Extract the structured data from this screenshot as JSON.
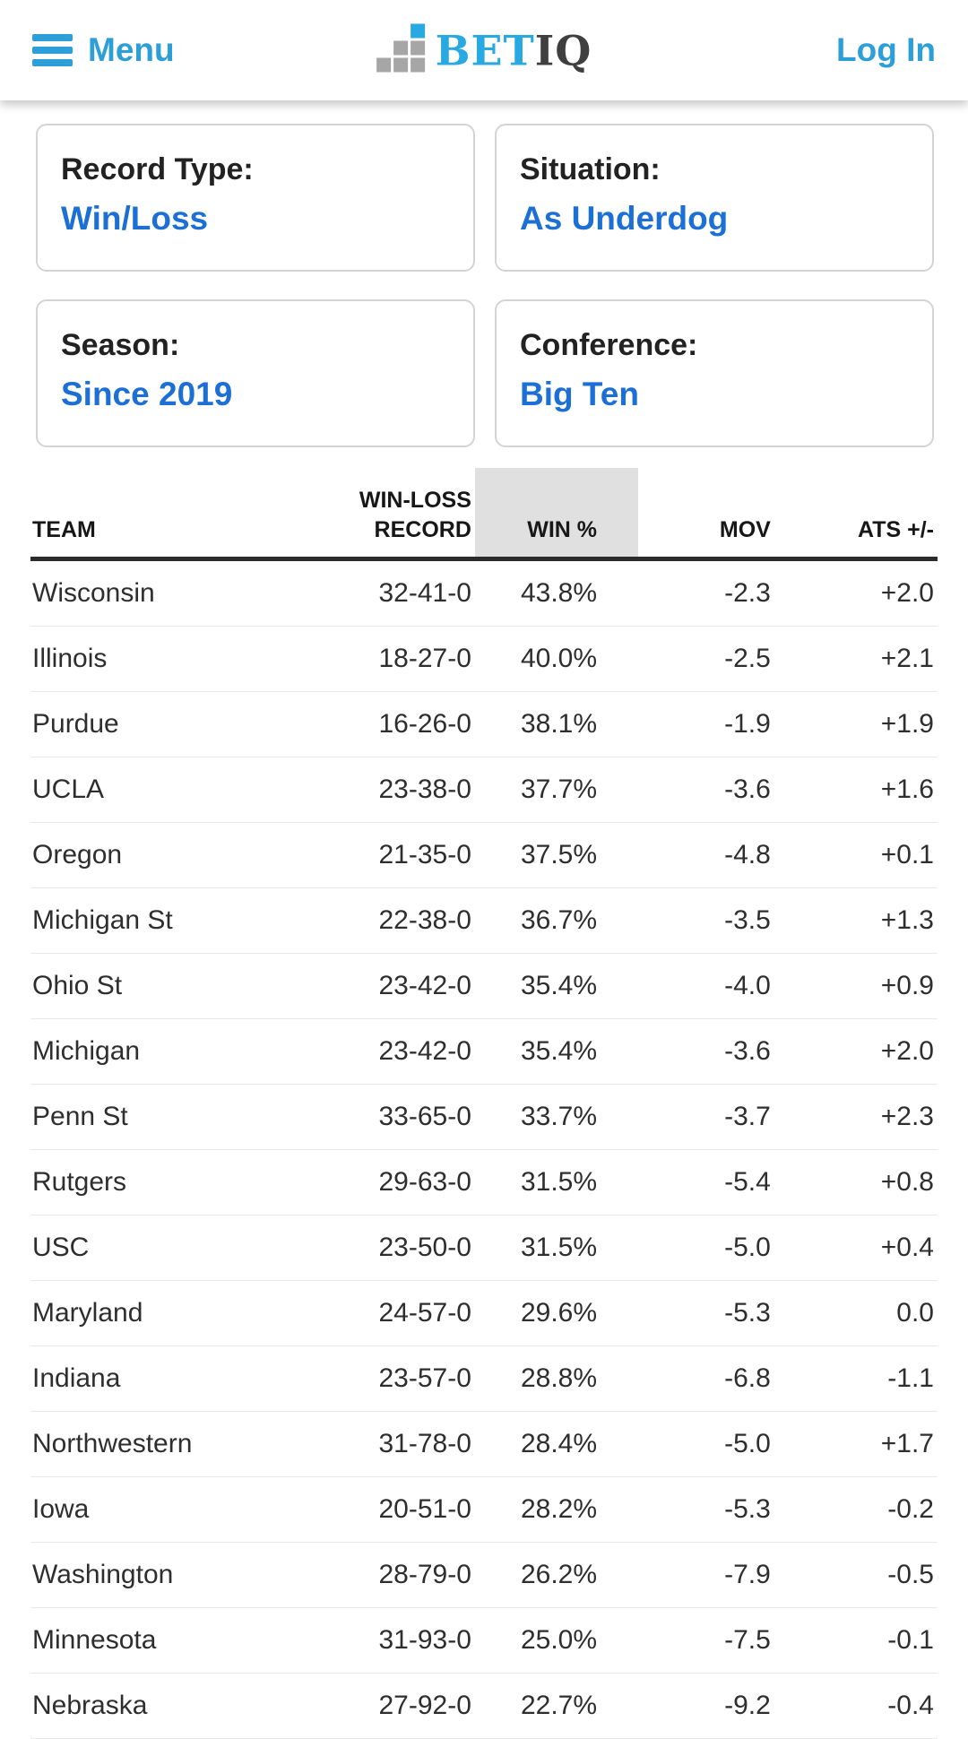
{
  "app": {
    "name": "BetIQ"
  },
  "header": {
    "menu_label": "Menu",
    "logo": {
      "bet": "BET",
      "iq": "IQ"
    },
    "login_label": "Log In"
  },
  "filters": [
    {
      "label": "Record Type:",
      "value": "Win/Loss"
    },
    {
      "label": "Situation:",
      "value": "As Underdog"
    },
    {
      "label": "Season:",
      "value": "Since 2019"
    },
    {
      "label": "Conference:",
      "value": "Big Ten"
    }
  ],
  "table": {
    "columns": [
      {
        "key": "team",
        "label": "TEAM"
      },
      {
        "key": "record",
        "label": "WIN-LOSS RECORD"
      },
      {
        "key": "win_pct",
        "label": "WIN %"
      },
      {
        "key": "mov",
        "label": "MOV"
      },
      {
        "key": "ats",
        "label": "ATS +/-"
      }
    ],
    "sorted_column": "win_pct",
    "rows": [
      {
        "team": "Wisconsin",
        "record": "32-41-0",
        "win_pct": "43.8%",
        "mov": "-2.3",
        "ats": "+2.0"
      },
      {
        "team": "Illinois",
        "record": "18-27-0",
        "win_pct": "40.0%",
        "mov": "-2.5",
        "ats": "+2.1"
      },
      {
        "team": "Purdue",
        "record": "16-26-0",
        "win_pct": "38.1%",
        "mov": "-1.9",
        "ats": "+1.9"
      },
      {
        "team": "UCLA",
        "record": "23-38-0",
        "win_pct": "37.7%",
        "mov": "-3.6",
        "ats": "+1.6"
      },
      {
        "team": "Oregon",
        "record": "21-35-0",
        "win_pct": "37.5%",
        "mov": "-4.8",
        "ats": "+0.1"
      },
      {
        "team": "Michigan St",
        "record": "22-38-0",
        "win_pct": "36.7%",
        "mov": "-3.5",
        "ats": "+1.3"
      },
      {
        "team": "Ohio St",
        "record": "23-42-0",
        "win_pct": "35.4%",
        "mov": "-4.0",
        "ats": "+0.9"
      },
      {
        "team": "Michigan",
        "record": "23-42-0",
        "win_pct": "35.4%",
        "mov": "-3.6",
        "ats": "+2.0"
      },
      {
        "team": "Penn St",
        "record": "33-65-0",
        "win_pct": "33.7%",
        "mov": "-3.7",
        "ats": "+2.3"
      },
      {
        "team": "Rutgers",
        "record": "29-63-0",
        "win_pct": "31.5%",
        "mov": "-5.4",
        "ats": "+0.8"
      },
      {
        "team": "USC",
        "record": "23-50-0",
        "win_pct": "31.5%",
        "mov": "-5.0",
        "ats": "+0.4"
      },
      {
        "team": "Maryland",
        "record": "24-57-0",
        "win_pct": "29.6%",
        "mov": "-5.3",
        "ats": "0.0"
      },
      {
        "team": "Indiana",
        "record": "23-57-0",
        "win_pct": "28.8%",
        "mov": "-6.8",
        "ats": "-1.1"
      },
      {
        "team": "Northwestern",
        "record": "31-78-0",
        "win_pct": "28.4%",
        "mov": "-5.0",
        "ats": "+1.7"
      },
      {
        "team": "Iowa",
        "record": "20-51-0",
        "win_pct": "28.2%",
        "mov": "-5.3",
        "ats": "-0.2"
      },
      {
        "team": "Washington",
        "record": "28-79-0",
        "win_pct": "26.2%",
        "mov": "-7.9",
        "ats": "-0.5"
      },
      {
        "team": "Minnesota",
        "record": "31-93-0",
        "win_pct": "25.0%",
        "mov": "-7.5",
        "ats": "-0.1"
      },
      {
        "team": "Nebraska",
        "record": "27-92-0",
        "win_pct": "22.7%",
        "mov": "-9.2",
        "ats": "-0.4"
      }
    ]
  },
  "icons": {
    "menu": "hamburger-icon",
    "logo": "bar-chart-icon"
  },
  "colors": {
    "accent_cyan": "#2d9fd8",
    "logo_cyan": "#29a9e1",
    "logo_dark": "#3f3f3f",
    "logo_gray": "#a6a6a6",
    "link_blue": "#1c6fd4",
    "sorted_header_bg": "#e0e0e0",
    "header_rule": "#2c2c2c",
    "row_divider": "#e9e9e9",
    "text_dark": "#212121"
  }
}
